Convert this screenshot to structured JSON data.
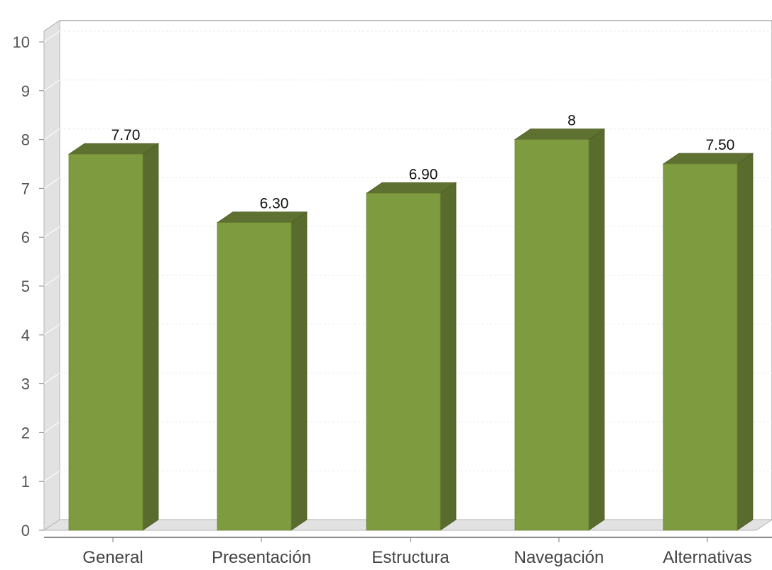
{
  "chart_data": {
    "type": "bar",
    "categories": [
      "General",
      "Presentación",
      "Estructura",
      "Navegación",
      "Alternativas"
    ],
    "values": [
      7.7,
      6.3,
      6.9,
      8,
      7.5
    ],
    "data_labels": [
      "7.70",
      "6.30",
      "6.90",
      "8",
      "7.50"
    ],
    "y_ticks": [
      "0",
      "1",
      "2",
      "3",
      "4",
      "5",
      "6",
      "7",
      "8",
      "9",
      "10"
    ],
    "ylim": [
      0,
      10
    ],
    "title": "",
    "xlabel": "",
    "ylabel": "",
    "grid": true,
    "style": "3d",
    "colors": {
      "bar_front": "#7e9b3f",
      "bar_side": "#5a6b2e",
      "bar_top": "#5f7131",
      "wall": "#e2e2e2",
      "floor": "#e2e2e2"
    }
  }
}
